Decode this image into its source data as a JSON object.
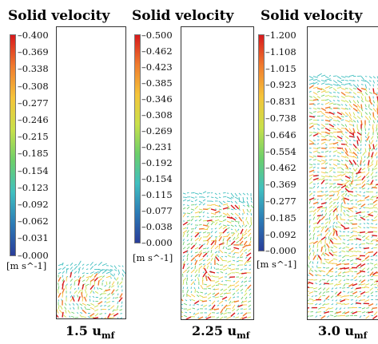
{
  "panels": [
    {
      "title": "Solid velocity",
      "colorbar_ticks": [
        "0.400",
        "0.369",
        "0.338",
        "0.308",
        "0.277",
        "0.246",
        "0.215",
        "0.185",
        "0.154",
        "0.123",
        "0.092",
        "0.062",
        "0.031",
        "0.000"
      ],
      "unit_label": "[m s^-1]",
      "label_main": "1.5 u",
      "label_sub": "mf",
      "bed_fill_fraction": 0.19
    },
    {
      "title": "Solid velocity",
      "colorbar_ticks": [
        "0.500",
        "0.462",
        "0.423",
        "0.385",
        "0.346",
        "0.308",
        "0.269",
        "0.231",
        "0.192",
        "0.154",
        "0.115",
        "0.077",
        "0.038",
        "0.000"
      ],
      "unit_label": "[m s^-1]",
      "label_main": "2.25 u",
      "label_sub": "mf",
      "bed_fill_fraction": 0.44
    },
    {
      "title": "Solid velocity",
      "colorbar_ticks": [
        "1.200",
        "1.108",
        "1.015",
        "0.923",
        "0.831",
        "0.738",
        "0.646",
        "0.554",
        "0.462",
        "0.369",
        "0.277",
        "0.185",
        "0.092",
        "0.000"
      ],
      "unit_label": "[m s^-1]",
      "label_main": "3.0 u",
      "label_sub": "mf",
      "bed_fill_fraction": 0.84
    }
  ],
  "colors": {
    "colormap": [
      "#d7191c",
      "#f07c2e",
      "#f5c43a",
      "#c9e04a",
      "#6ccf6a",
      "#40bfc0",
      "#2c7bb6",
      "#2a3d99"
    ]
  }
}
